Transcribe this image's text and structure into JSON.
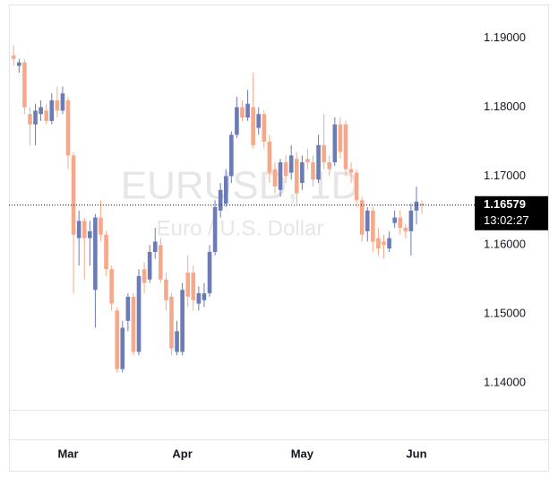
{
  "chart_data": {
    "type": "candlestick",
    "watermark": "EURUSD, 1D",
    "subtitle": "Euro / U.S. Dollar",
    "up_color": "#6a7bb5",
    "down_color": "#f6a98a",
    "open": [
      1.1875,
      1.186,
      1.1865,
      1.179,
      1.1775,
      1.179,
      1.1795,
      1.178,
      1.181,
      1.1795,
      1.181,
      1.173,
      1.161,
      1.1635,
      1.161,
      1.1535,
      1.164,
      1.1615,
      1.1565,
      1.1505,
      1.142,
      1.149,
      1.1525,
      1.1445,
      1.1565,
      1.155,
      1.159,
      1.16,
      1.155,
      1.1525,
      1.1445,
      1.1445,
      1.156,
      1.156,
      1.1515,
      1.152,
      1.153,
      1.159,
      1.165,
      1.166,
      1.17,
      1.176,
      1.18,
      1.1785,
      1.18,
      1.177,
      1.179,
      1.175,
      1.171,
      1.168,
      1.172,
      1.1705,
      1.1725,
      1.169,
      1.1725,
      1.172,
      1.1695,
      1.1745,
      1.172,
      1.172,
      1.1775,
      1.1775,
      1.171,
      1.1705,
      1.1665,
      1.162,
      1.165,
      1.161,
      1.1605,
      1.1595,
      1.1632,
      1.164,
      1.1625,
      1.162,
      1.165,
      1.166
    ],
    "high": [
      1.189,
      1.187,
      1.187,
      1.18,
      1.1805,
      1.181,
      1.1805,
      1.182,
      1.183,
      1.183,
      1.1815,
      1.1735,
      1.165,
      1.164,
      1.1635,
      1.1645,
      1.1665,
      1.162,
      1.157,
      1.151,
      1.149,
      1.153,
      1.153,
      1.1565,
      1.1575,
      1.16,
      1.1625,
      1.161,
      1.156,
      1.153,
      1.149,
      1.1545,
      1.1585,
      1.157,
      1.154,
      1.1545,
      1.16,
      1.1665,
      1.169,
      1.171,
      1.1765,
      1.1815,
      1.181,
      1.1825,
      1.185,
      1.18,
      1.1795,
      1.176,
      1.172,
      1.1725,
      1.173,
      1.1745,
      1.1735,
      1.173,
      1.174,
      1.173,
      1.176,
      1.179,
      1.173,
      1.1785,
      1.1785,
      1.178,
      1.172,
      1.171,
      1.167,
      1.1655,
      1.1655,
      1.1625,
      1.1615,
      1.162,
      1.165,
      1.165,
      1.163,
      1.166,
      1.1685,
      1.1665
    ],
    "low": [
      1.186,
      1.185,
      1.179,
      1.1745,
      1.1745,
      1.178,
      1.1775,
      1.1775,
      1.1785,
      1.179,
      1.171,
      1.153,
      1.157,
      1.155,
      1.157,
      1.148,
      1.1605,
      1.1555,
      1.1505,
      1.1415,
      1.1415,
      1.1475,
      1.144,
      1.144,
      1.153,
      1.1545,
      1.158,
      1.1545,
      1.1505,
      1.144,
      1.144,
      1.144,
      1.151,
      1.1505,
      1.1505,
      1.151,
      1.1525,
      1.1585,
      1.164,
      1.1655,
      1.169,
      1.1755,
      1.178,
      1.178,
      1.174,
      1.176,
      1.174,
      1.169,
      1.1675,
      1.167,
      1.169,
      1.1695,
      1.166,
      1.168,
      1.171,
      1.1685,
      1.169,
      1.171,
      1.17,
      1.1715,
      1.1725,
      1.17,
      1.169,
      1.1655,
      1.1605,
      1.1605,
      1.159,
      1.1585,
      1.158,
      1.159,
      1.1625,
      1.1615,
      1.161,
      1.1585,
      1.163,
      1.1645
    ],
    "close": [
      1.187,
      1.1865,
      1.18,
      1.1775,
      1.1795,
      1.18,
      1.178,
      1.181,
      1.1795,
      1.182,
      1.173,
      1.1615,
      1.1635,
      1.161,
      1.162,
      1.164,
      1.1615,
      1.1565,
      1.1515,
      1.142,
      1.148,
      1.1525,
      1.1445,
      1.1555,
      1.1545,
      1.159,
      1.1605,
      1.155,
      1.152,
      1.145,
      1.1475,
      1.1535,
      1.1525,
      1.152,
      1.153,
      1.153,
      1.159,
      1.1655,
      1.168,
      1.17,
      1.176,
      1.18,
      1.1785,
      1.1805,
      1.1745,
      1.179,
      1.175,
      1.1705,
      1.1685,
      1.172,
      1.17,
      1.173,
      1.1675,
      1.172,
      1.172,
      1.1695,
      1.1745,
      1.172,
      1.171,
      1.1775,
      1.1735,
      1.171,
      1.1705,
      1.1665,
      1.1615,
      1.165,
      1.1605,
      1.1595,
      1.16,
      1.161,
      1.164,
      1.1625,
      1.162,
      1.165,
      1.1663,
      1.16579
    ],
    "xlim": [
      -0.86,
      84.7
    ],
    "xticks": [
      {
        "value": 10,
        "label": "Mar"
      },
      {
        "value": 31,
        "label": "Apr"
      },
      {
        "value": 53,
        "label": "May"
      },
      {
        "value": 74,
        "label": "Jun"
      }
    ],
    "ylim": [
      1.1361,
      1.1949
    ],
    "yticks": [
      {
        "value": 1.14,
        "label": "1.14000"
      },
      {
        "value": 1.15,
        "label": "1.15000"
      },
      {
        "value": 1.16,
        "label": "1.16000"
      },
      {
        "value": 1.17,
        "label": "1.17000"
      },
      {
        "value": 1.18,
        "label": "1.18000"
      },
      {
        "value": 1.19,
        "label": "1.19000"
      }
    ],
    "last_price": {
      "value": 1.16579,
      "label": "1.16579"
    },
    "countdown": "13:02:27"
  }
}
